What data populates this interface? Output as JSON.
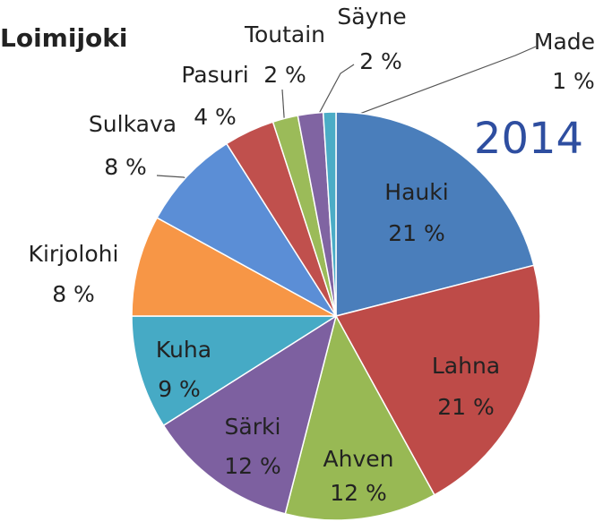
{
  "chart_data": {
    "type": "pie",
    "title": "Loimijoki",
    "annotation": "2014",
    "categories": [
      "Hauki",
      "Lahna",
      "Ahven",
      "Särki",
      "Kuha",
      "Kirjolohi",
      "Sulkava",
      "Pasuri",
      "Toutain",
      "Säyne",
      "Made"
    ],
    "values": [
      21,
      21,
      12,
      12,
      9,
      8,
      8,
      4,
      2,
      2,
      1
    ],
    "value_labels": [
      "21 %",
      "21 %",
      "12 %",
      "12 %",
      "9 %",
      "8 %",
      "8 %",
      "4 %",
      "2 %",
      "2 %",
      "1 %"
    ],
    "colors": [
      "#4a7ebb",
      "#be4b48",
      "#98b954",
      "#7d60a0",
      "#46aac5",
      "#f79646",
      "#5b8ed6",
      "#c0504d",
      "#9bbb59",
      "#8064a2",
      "#4bacc6"
    ]
  }
}
